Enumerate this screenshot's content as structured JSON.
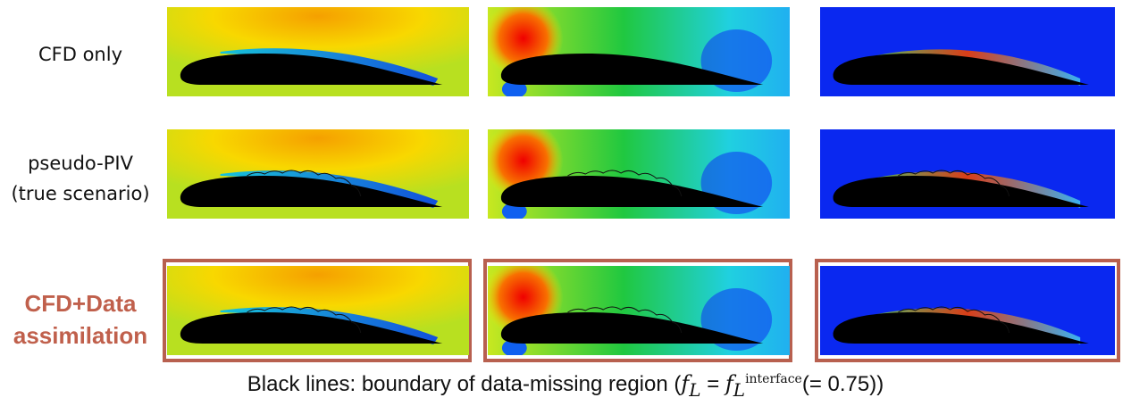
{
  "rows": [
    {
      "label_lines": [
        "CFD only"
      ]
    },
    {
      "label_lines": [
        "pseudo-PIV",
        "(true scenario)"
      ]
    },
    {
      "label_lines": [
        "CFD+Data",
        "assimilation"
      ]
    }
  ],
  "highlight_color": "#c0604c",
  "caption": {
    "prefix": "Black lines: boundary of data-missing region (",
    "lhs": "f",
    "lhs_sub": "L",
    "eq": " = ",
    "rhs": "f",
    "rhs_sub": "L",
    "rhs_sup": "interface",
    "suffix": "(= 0.75))"
  }
}
